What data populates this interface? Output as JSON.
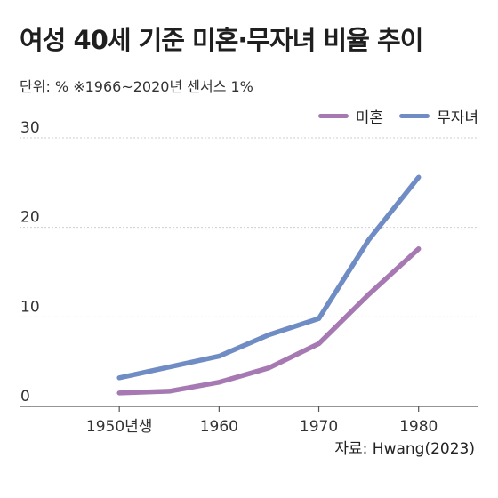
{
  "title": "여성 40세 기준 미혼·무자녀 비율 추이",
  "subtitle": "단위: %  ※1966~2020년 센서스 1%",
  "source": "자료: Hwang(2023)",
  "chart_data": {
    "type": "line",
    "x": [
      1950,
      1955,
      1960,
      1965,
      1970,
      1975,
      1980
    ],
    "x_tick_labels": [
      "1950년생",
      "1960",
      "1970",
      "1980"
    ],
    "x_tick_values": [
      1950,
      1960,
      1970,
      1980
    ],
    "y_tick_labels": [
      "0",
      "10",
      "20",
      "30"
    ],
    "y_tick_values": [
      0,
      10,
      20,
      30
    ],
    "ylim": [
      0,
      30
    ],
    "xlim": [
      1940,
      1986
    ],
    "grid": true,
    "legend_position": "top-right",
    "series": [
      {
        "name": "미혼",
        "color": "#a679b3",
        "values": [
          1.5,
          1.7,
          2.7,
          4.3,
          7.0,
          12.5,
          17.6
        ]
      },
      {
        "name": "무자녀",
        "color": "#6f8cc4",
        "values": [
          3.2,
          4.4,
          5.6,
          8.0,
          9.8,
          18.6,
          25.6
        ]
      }
    ]
  }
}
